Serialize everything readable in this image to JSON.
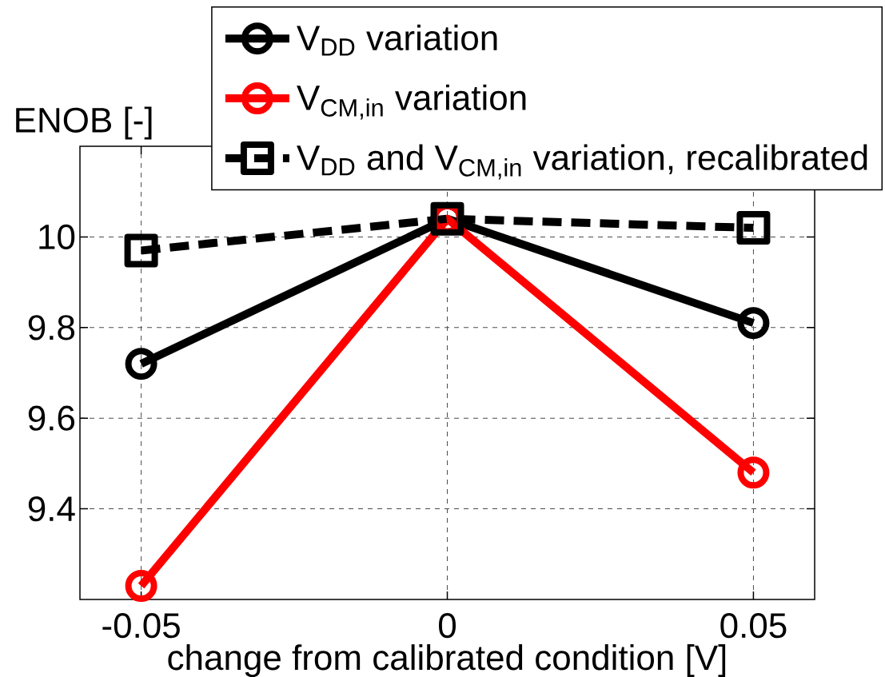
{
  "chart_data": {
    "type": "line",
    "xlabel": "change from calibrated condition [V]",
    "ylabel": "ENOB [-]",
    "x": [
      -0.05,
      0,
      0.05
    ],
    "series": [
      {
        "name": "V$_{DD}$ variation",
        "color": "#000000",
        "values": [
          9.72,
          10.04,
          9.81
        ],
        "marker": "circle",
        "line_style": "solid"
      },
      {
        "name": "V$_{CM,in}$ variation",
        "color": "#ff0000",
        "values": [
          9.23,
          10.04,
          9.48
        ],
        "marker": "circle",
        "line_style": "solid"
      },
      {
        "name": "V$_{DD}$ and V$_{CM,in}$ variation, recalibrated",
        "color": "#000000",
        "values": [
          9.97,
          10.04,
          10.02
        ],
        "marker": "square",
        "line_style": "dashed"
      }
    ],
    "xlim": [
      -0.06,
      0.06
    ],
    "xticks": [
      -0.05,
      0,
      0.05
    ],
    "ylim": [
      9.2,
      10.2
    ],
    "yticks": [
      9.4,
      9.6,
      9.8,
      10
    ],
    "grid": true,
    "legend": "top right"
  }
}
